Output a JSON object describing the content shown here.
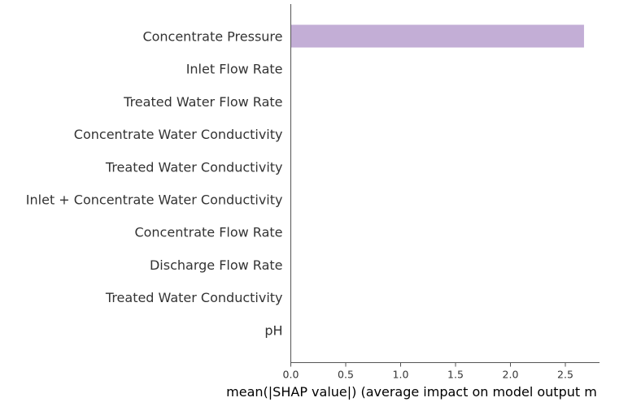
{
  "chart_data": {
    "type": "bar",
    "orientation": "horizontal",
    "categories": [
      "Concentrate Pressure",
      "Inlet Flow Rate",
      "Treated Water Flow Rate",
      "Concentrate Water Conductivity",
      "Treated Water Conductivity",
      "Inlet + Concentrate Water Conductivity",
      "Concentrate Flow Rate",
      "Discharge Flow Rate",
      "Treated Water Conductivity",
      "pH"
    ],
    "values": [
      2.67,
      0.004,
      0.002,
      0.001,
      0.001,
      0.001,
      0.0005,
      0.0005,
      0.0005,
      0.0003
    ],
    "xlabel": "mean(|SHAP value|) (average impact on model output m",
    "xlim": [
      0,
      2.8
    ],
    "xticks": [
      "0.0",
      "0.5",
      "1.0",
      "1.5",
      "2.0",
      "2.5"
    ],
    "grid": false,
    "colors": {
      "bar": "#c3aed6",
      "axis": "#555555",
      "text": "#333333"
    }
  }
}
